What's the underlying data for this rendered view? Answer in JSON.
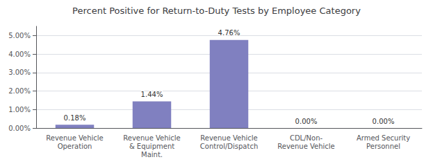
{
  "chart_data": {
    "type": "bar",
    "title": "Percent Positive for Return-to-Duty Tests by Employee Category",
    "categories": [
      "Revenue Vehicle\nOperation",
      "Revenue Vehicle\n& Equipment\nMaint.",
      "Revenue Vehicle\nControl/Dispatch",
      "CDL/Non-\nRevenue Vehicle",
      "Armed Security\nPersonnel"
    ],
    "values": [
      0.0018,
      0.0144,
      0.0476,
      0.0,
      0.0
    ],
    "value_labels": [
      "0.18%",
      "1.44%",
      "4.76%",
      "0.00%",
      "0.00%"
    ],
    "data_labels": true,
    "color": "#8080c0",
    "ylim": [
      0,
      0.055
    ],
    "yticks": [
      {
        "value": 0.0,
        "label": "0.00%"
      },
      {
        "value": 0.01,
        "label": "1.00%"
      },
      {
        "value": 0.02,
        "label": "2.00%"
      },
      {
        "value": 0.03,
        "label": "3.00%"
      },
      {
        "value": 0.04,
        "label": "4.00%"
      },
      {
        "value": 0.05,
        "label": "5.00%"
      }
    ],
    "grid": true
  }
}
